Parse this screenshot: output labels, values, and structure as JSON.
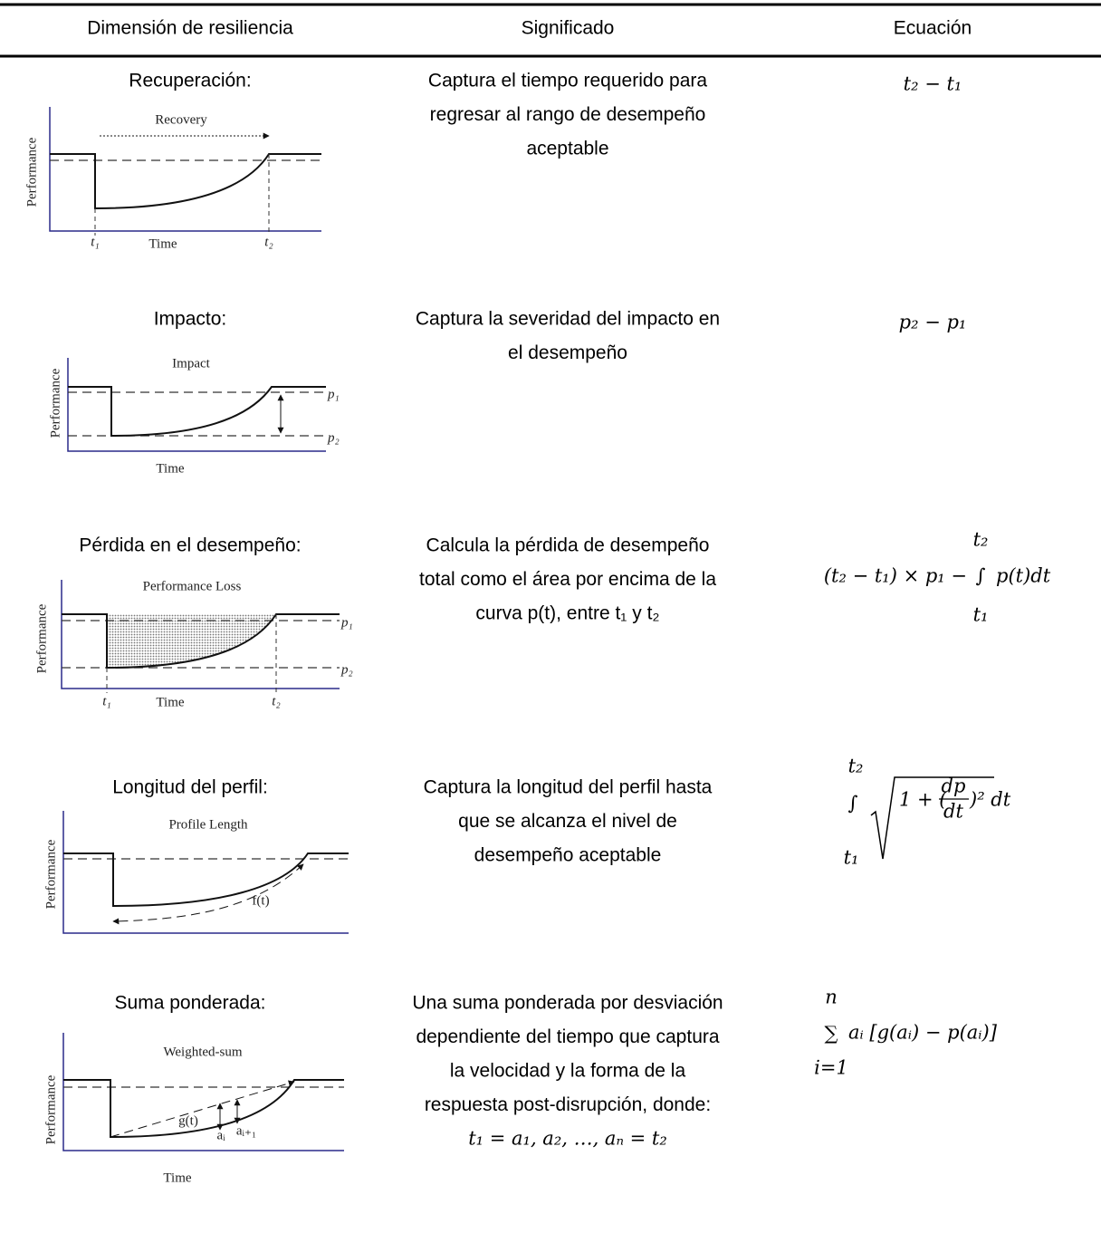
{
  "table": {
    "headers": [
      "Dimensión de resiliencia",
      "Significado",
      "Ecuación"
    ],
    "rows": [
      {
        "dimension": "Recuperación:",
        "meaning": [
          "Captura el tiempo requerido para",
          "regresar al rango de desempeño",
          "aceptable"
        ],
        "equation": {
          "left": "t₂ − t₁"
        },
        "figure": {
          "title": "Recovery",
          "y_label": "Performance",
          "x_label": "Time",
          "t1": "t₁",
          "t2": "t₂"
        }
      },
      {
        "dimension": "Impacto:",
        "meaning": [
          "Captura la severidad del impacto en",
          "el desempeño"
        ],
        "equation": {
          "left": "p₂ − p₁"
        },
        "figure": {
          "title": "Impact",
          "y_label": "Performance",
          "x_label": "Time",
          "p1": "p₁",
          "p2": "p₂"
        }
      },
      {
        "dimension": "Pérdida en el desempeño:",
        "meaning": [
          "Calcula la pérdida de desempeño",
          "total como el área por encima de la",
          "curva p(t), entre t₁ y t₂"
        ],
        "equation": {
          "left": "(t₂ − t₁) × p₁ −",
          "symbol": "∫",
          "right": "p(t)dt",
          "upper": "t₂",
          "lower": "t₁"
        },
        "figure": {
          "title": "Performance Loss",
          "y_label": "Performance",
          "x_label": "Time",
          "t1": "t₁",
          "t2": "t₂",
          "p1": "p₁",
          "p2": "p₂"
        }
      },
      {
        "dimension": "Longitud del perfil:",
        "meaning": [
          "Captura la longitud del perfil hasta",
          "que se alcanza el nivel de",
          "desempeño aceptable"
        ],
        "equation": {
          "symbol": "∫",
          "upper": "t₂",
          "lower": "t₁",
          "left": "1 + (",
          "numerator": "dp",
          "denominator": "dt",
          "right": ")² dt"
        },
        "figure": {
          "title": "Profile Length",
          "y_label": "Performance",
          "curve": "f(t)"
        }
      },
      {
        "dimension": "Suma ponderada:",
        "meaning": [
          "Una suma ponderada por desviación",
          "dependiente del tiempo que captura",
          "la velocidad y la forma de la",
          "respuesta post-disrupción, donde:",
          "t₁ = a₁, a₂, …, aₙ = t₂"
        ],
        "equation": {
          "symbol": "∑",
          "upper": "n",
          "lower": "i=1",
          "right": "aᵢ [g(aᵢ) − p(aᵢ)]"
        },
        "figure": {
          "title": "Weighted-sum",
          "y_label": "Performance",
          "x_label": "Time",
          "curve": "g(t)",
          "ai": "aᵢ",
          "ai1": "aᵢ₊₁"
        }
      }
    ]
  }
}
